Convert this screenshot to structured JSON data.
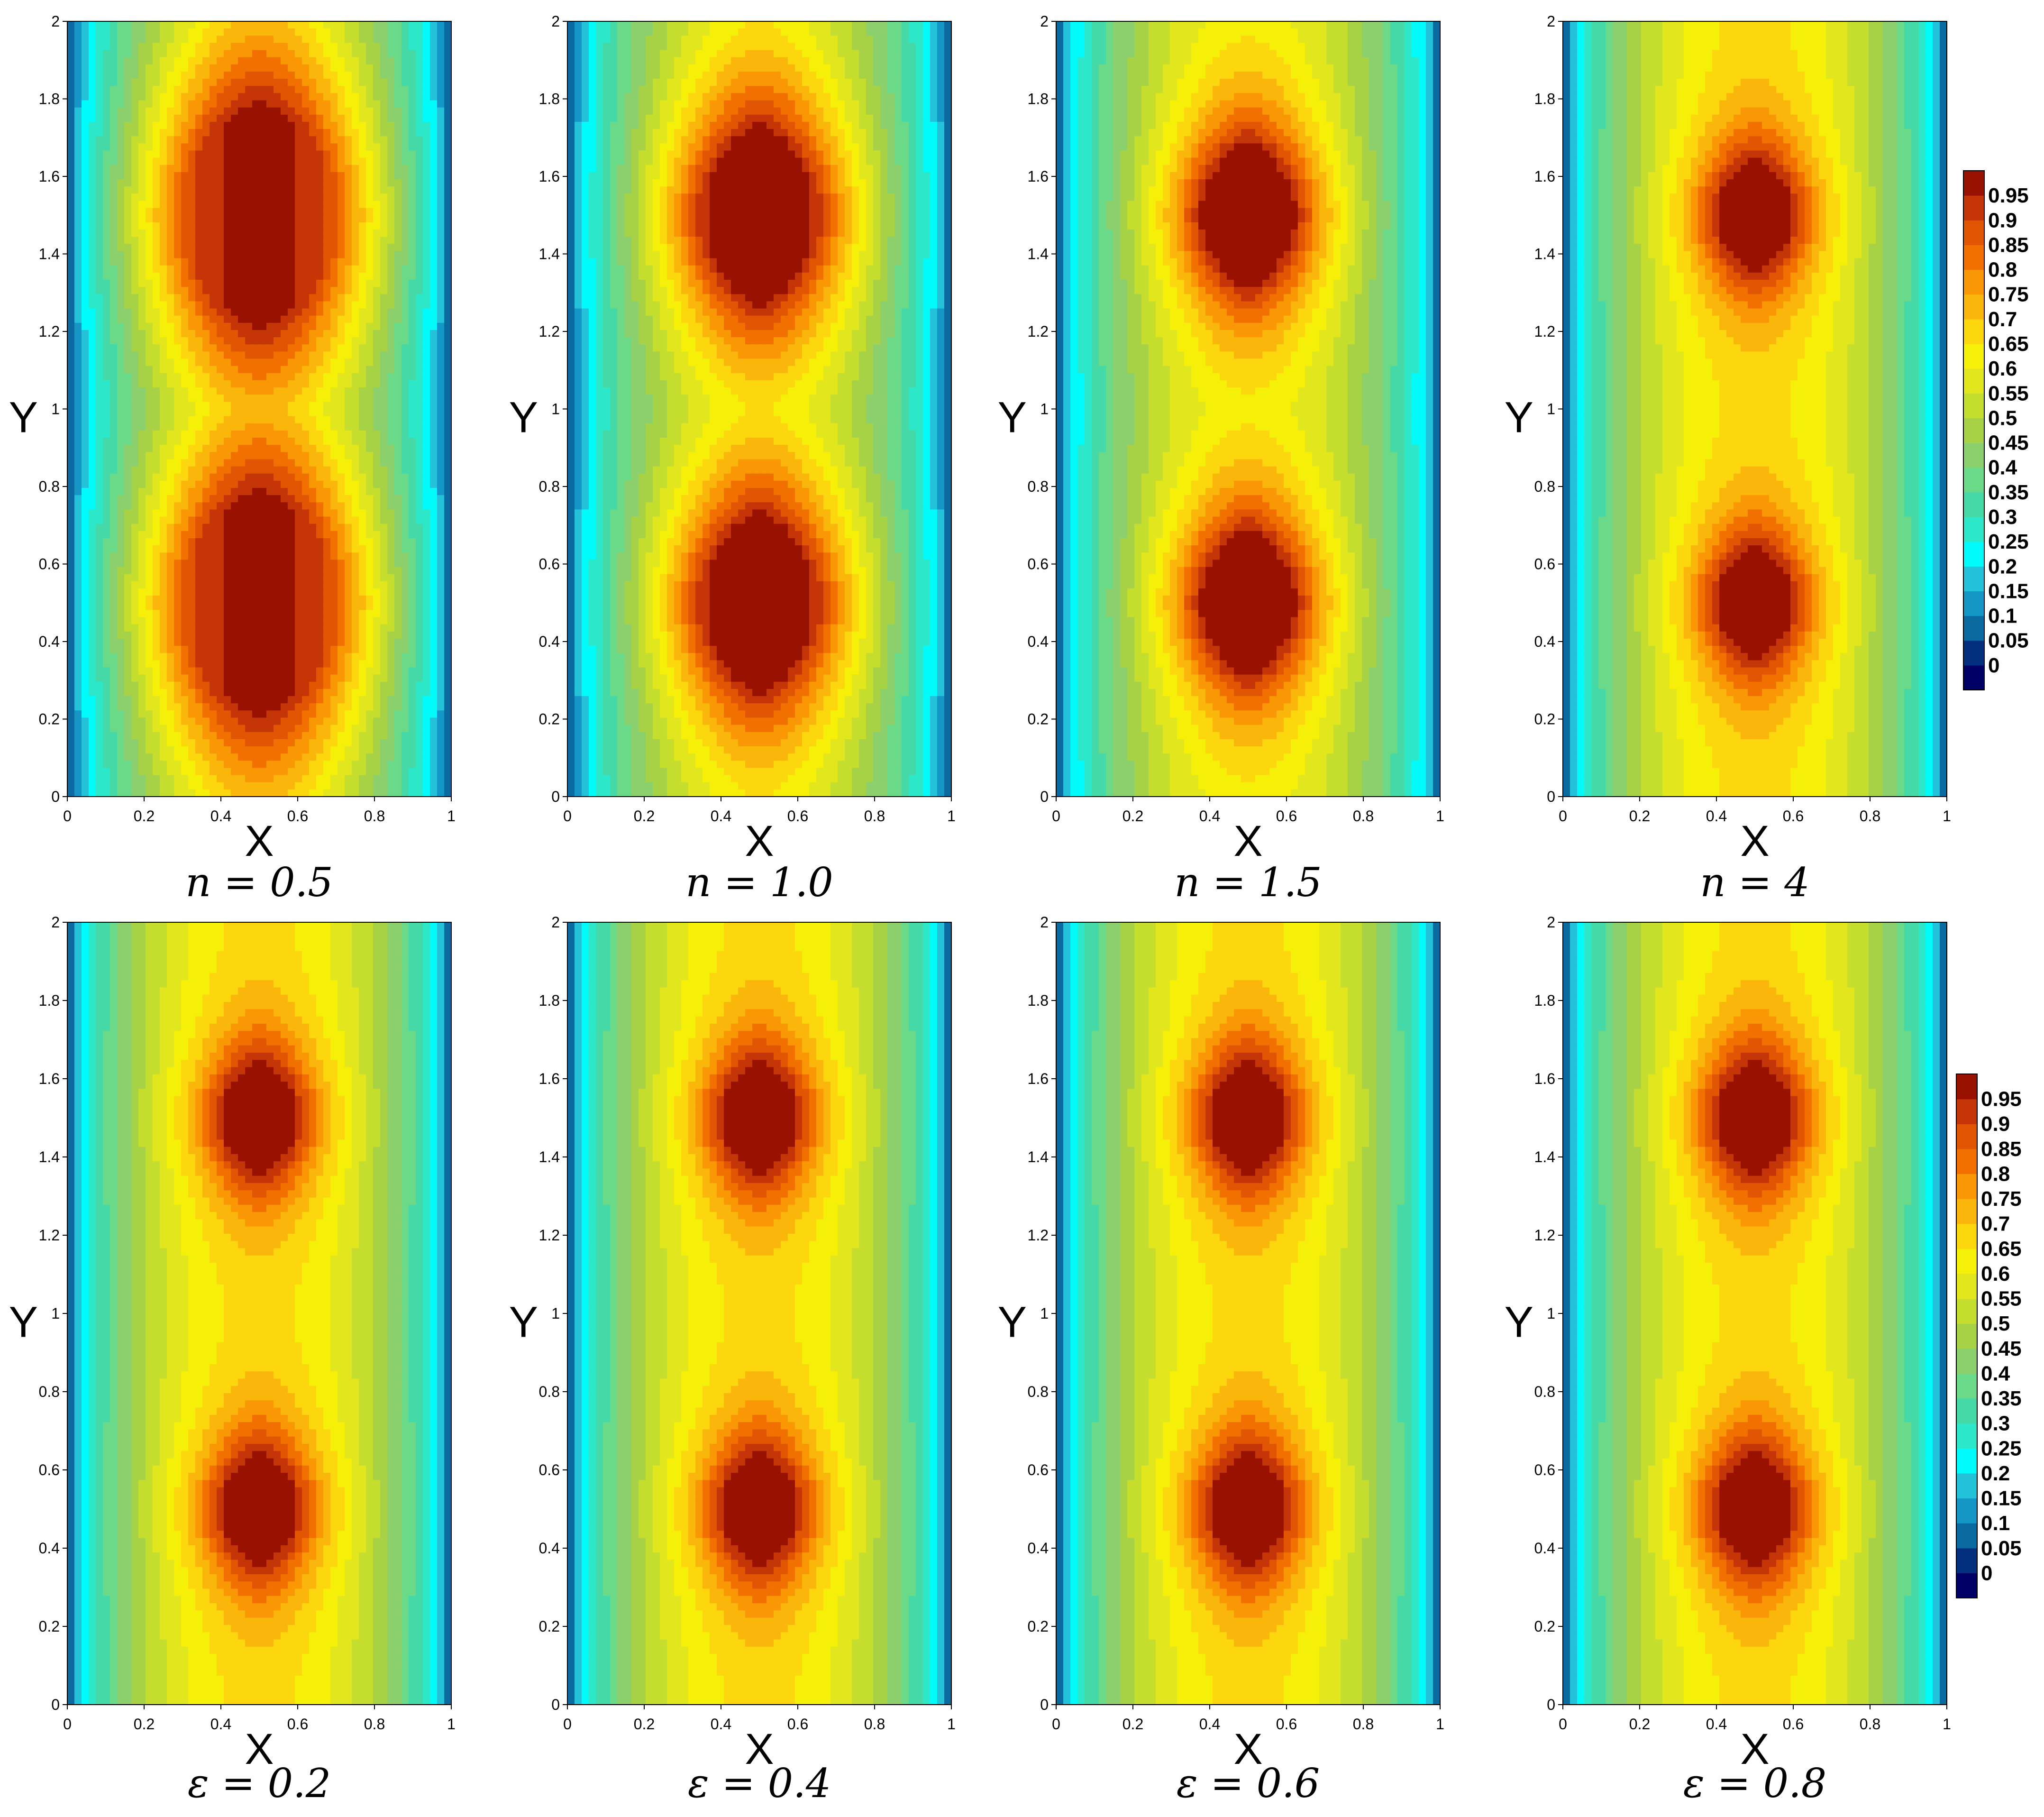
{
  "chart_data": {
    "type": "heatmap",
    "colormap": [
      "#000066",
      "#03307e",
      "#0b6aa0",
      "#1497c7",
      "#23c2d9",
      "#00fbfb",
      "#2de7c9",
      "#46d9a8",
      "#6ad988",
      "#8bd06d",
      "#a7d246",
      "#c5de2d",
      "#e1e61d",
      "#f6ef07",
      "#fcd70d",
      "#fab60b",
      "#f99705",
      "#f17000",
      "#e15503",
      "#c43507",
      "#991100",
      "#8b0000"
    ],
    "x_ticks": [
      "0",
      "0.2",
      "0.4",
      "0.6",
      "0.8",
      "1"
    ],
    "y_ticks": [
      "0",
      "0.2",
      "0.4",
      "0.6",
      "0.8",
      "1",
      "1.2",
      "1.4",
      "1.6",
      "1.8",
      "2"
    ],
    "colorbar_labels": [
      "0",
      "0.05",
      "0.1",
      "0.15",
      "0.2",
      "0.25",
      "0.3",
      "0.35",
      "0.4",
      "0.45",
      "0.5",
      "0.55",
      "0.6",
      "0.65",
      "0.7",
      "0.75",
      "0.8",
      "0.85",
      "0.9",
      "0.95"
    ],
    "panels": [
      {
        "xlabel": "X",
        "ylabel": "Y",
        "caption": "n = 0.5",
        "xlim": [
          0,
          1
        ],
        "ylim": [
          0,
          2
        ],
        "peak": 0.97,
        "sharpness": 0.9,
        "baseline": 0.48
      },
      {
        "xlabel": "X",
        "ylabel": "Y",
        "caption": "n = 1.0",
        "xlim": [
          0,
          1
        ],
        "ylim": [
          0,
          2
        ],
        "peak": 1.0,
        "sharpness": 1.5,
        "baseline": 0.55
      },
      {
        "xlabel": "X",
        "ylabel": "Y",
        "caption": "n = 1.5",
        "xlim": [
          0,
          1
        ],
        "ylim": [
          0,
          2
        ],
        "peak": 1.0,
        "sharpness": 2.2,
        "baseline": 0.6
      },
      {
        "xlabel": "X",
        "ylabel": "Y",
        "caption": "n = 4",
        "xlim": [
          0,
          1
        ],
        "ylim": [
          0,
          2
        ],
        "peak": 1.0,
        "sharpness": 3.4,
        "baseline": 0.66
      },
      {
        "xlabel": "X",
        "ylabel": "Y",
        "caption": "ε = 0.2",
        "xlim": [
          0,
          1
        ],
        "ylim": [
          0,
          2
        ],
        "peak": 1.0,
        "sharpness": 3.4,
        "baseline": 0.66
      },
      {
        "xlabel": "X",
        "ylabel": "Y",
        "caption": "ε = 0.4",
        "xlim": [
          0,
          1
        ],
        "ylim": [
          0,
          2
        ],
        "peak": 1.0,
        "sharpness": 3.4,
        "baseline": 0.66
      },
      {
        "xlabel": "X",
        "ylabel": "Y",
        "caption": "ε = 0.6",
        "xlim": [
          0,
          1
        ],
        "ylim": [
          0,
          2
        ],
        "peak": 1.0,
        "sharpness": 3.4,
        "baseline": 0.66
      },
      {
        "xlabel": "X",
        "ylabel": "Y",
        "caption": "ε = 0.8",
        "xlim": [
          0,
          1
        ],
        "ylim": [
          0,
          2
        ],
        "peak": 1.0,
        "sharpness": 3.4,
        "baseline": 0.66
      }
    ]
  }
}
